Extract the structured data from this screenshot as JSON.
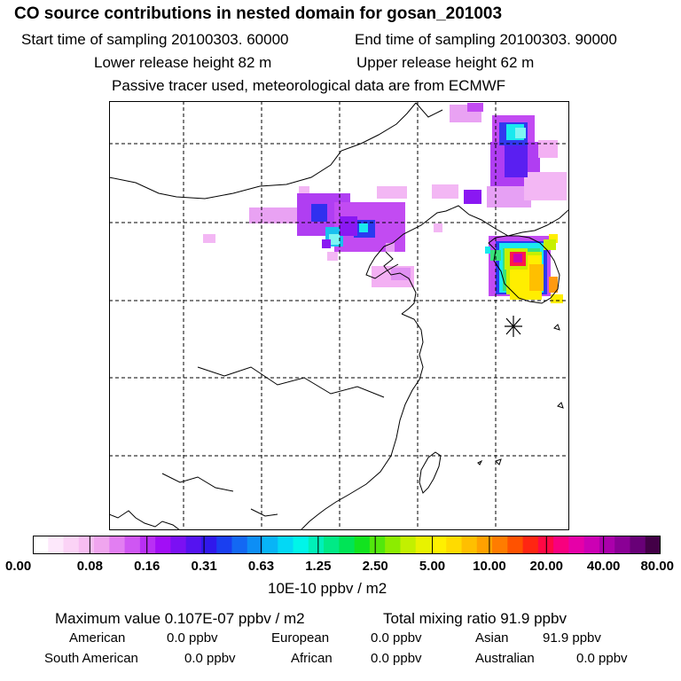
{
  "title": "CO  source contributions in nested domain for gosan_201003",
  "header": {
    "start_time": "Start time of sampling 20100303. 60000",
    "end_time": "End time of sampling 20100303. 90000",
    "lower_release": "Lower release height   82 m",
    "upper_release": "Upper release height   62 m",
    "tracer_note": "Passive tracer used, meteorological data are from ECMWF"
  },
  "colorbar": {
    "ticks": [
      "0.00",
      "0.08",
      "0.16",
      "0.31",
      "0.63",
      "1.25",
      "2.50",
      "5.00",
      "10.00",
      "20.00",
      "40.00",
      "80.00"
    ],
    "colors": [
      "#ffffff",
      "#fde8fb",
      "#fbd3f6",
      "#f7bdf2",
      "#f0a5ee",
      "#e27ef2",
      "#cf56f3",
      "#b92ff5",
      "#a20ef6",
      "#7b10f3",
      "#5513f0",
      "#3018ec",
      "#1a3ff0",
      "#1368f3",
      "#0d8ef5",
      "#08b4f6",
      "#03d8f5",
      "#00f5e9",
      "#00f0b8",
      "#00ea86",
      "#00e456",
      "#12e31f",
      "#52e80c",
      "#8cec00",
      "#c2f000",
      "#e8f200",
      "#fff000",
      "#ffdb00",
      "#ffbf00",
      "#ffa100",
      "#ff7c00",
      "#ff5200",
      "#ff2612",
      "#ff0844",
      "#f8007e",
      "#e600a8",
      "#cc00b4",
      "#ab00ab",
      "#8a0095",
      "#680077",
      "#430047"
    ],
    "unit": "10E-10 ppbv / m2"
  },
  "summary": {
    "maximum": "Maximum value  0.107E-07 ppbv / m2",
    "total": "Total mixing ratio       91.9 ppbv"
  },
  "regions": [
    {
      "name": "American",
      "value": "0.0 ppbv"
    },
    {
      "name": "European",
      "value": "0.0 ppbv"
    },
    {
      "name": "Asian",
      "value": "91.9 ppbv"
    },
    {
      "name": "South American",
      "value": "0.0 ppbv"
    },
    {
      "name": "African",
      "value": "0.0 ppbv"
    },
    {
      "name": "Australian",
      "value": "0.0 ppbv"
    }
  ],
  "map_features": {
    "receptor_marker": "star-icon",
    "plume_colors": {
      "light": "#f3b0f3",
      "purple": "#c24bf2",
      "violet": "#8a18f2",
      "blue": "#2a3af0",
      "cyan": "#19e9ef",
      "green": "#38e27a",
      "yellow": "#ffee00",
      "orange": "#ff9a10",
      "red": "#ff1a48"
    }
  }
}
